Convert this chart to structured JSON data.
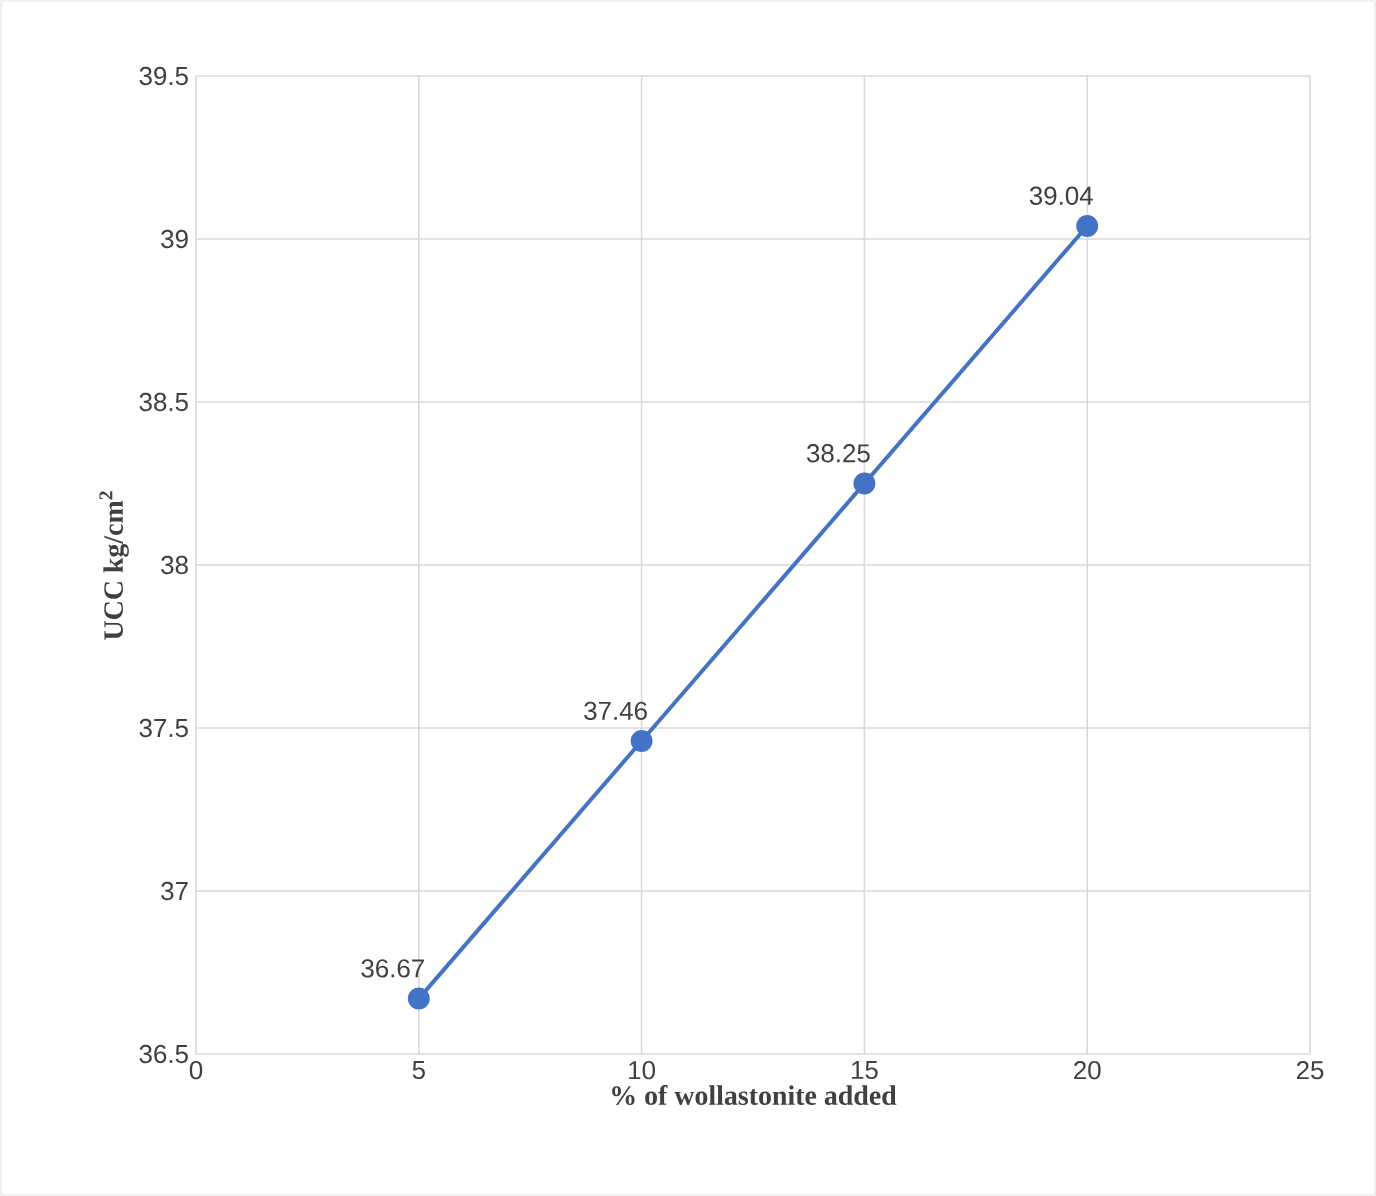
{
  "chart_data": {
    "type": "line",
    "xlabel": "% of wollastonite added",
    "ylabel": "UCC kg/cm$^{2}$",
    "x": [
      5,
      10,
      15,
      20
    ],
    "values": [
      36.67,
      37.46,
      38.25,
      39.04
    ],
    "color": "#4472c4",
    "marker": "circle",
    "line_style": "solid",
    "data_labels": true,
    "grid": true,
    "xlim": [
      0,
      25
    ],
    "xticks": [
      0,
      5,
      10,
      15,
      20,
      25
    ],
    "ylim": [
      36.5,
      39.5
    ],
    "yticks": [
      36.5,
      37,
      37.5,
      38,
      38.5,
      39,
      39.5
    ]
  }
}
